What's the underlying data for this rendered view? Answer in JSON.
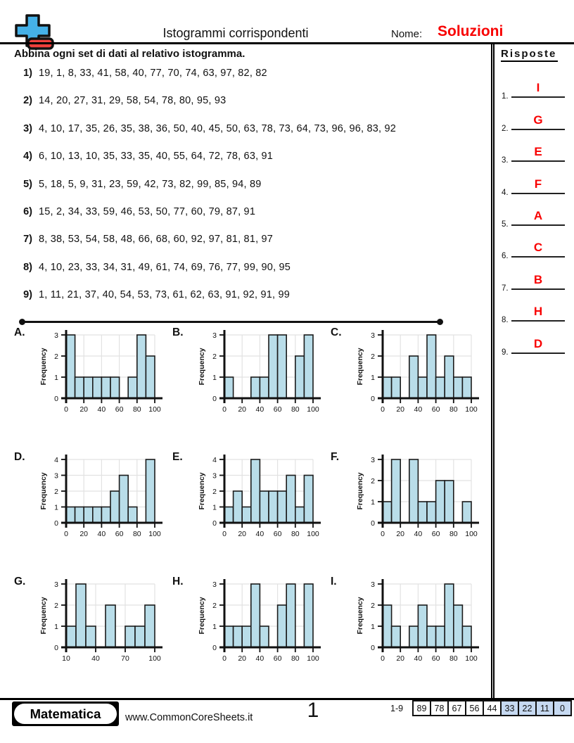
{
  "colors": {
    "red": "#f80000",
    "bar_fill": "#b9dde9",
    "score_highlight": "#c6d9f1",
    "logo_blue": "#45b1e8",
    "logo_red": "#ee3f3b"
  },
  "header": {
    "title": "Istogrammi corrispondenti",
    "name_label": "Nome:",
    "name_value": "Soluzioni"
  },
  "instruction": "Abbina ogni set di dati al relativo istogramma.",
  "datasets": [
    {
      "num": "1)",
      "values": "19, 1, 8, 33, 41, 58, 40, 77, 70, 74, 63, 97, 82, 82"
    },
    {
      "num": "2)",
      "values": "14, 20, 27, 31, 29, 58, 54, 78, 80, 95, 93"
    },
    {
      "num": "3)",
      "values": "4, 10, 17, 35, 26, 35, 38, 36, 50, 40, 45, 50, 63, 78, 73, 64, 73, 96, 96, 83, 92"
    },
    {
      "num": "4)",
      "values": "6, 10, 13, 10, 35, 33, 35, 40, 55, 64, 72, 78, 63, 91"
    },
    {
      "num": "5)",
      "values": "5, 18, 5, 9, 31, 23, 59, 42, 73, 82, 99, 85, 94, 89"
    },
    {
      "num": "6)",
      "values": "15, 2, 34, 33, 59, 46, 53, 50, 77, 60, 79, 87, 91"
    },
    {
      "num": "7)",
      "values": "8, 38, 53, 54, 58, 48, 66, 68, 60, 92, 97, 81, 81, 97"
    },
    {
      "num": "8)",
      "values": "4, 10, 23, 33, 34, 31, 49, 61, 74, 69, 76, 77, 99, 90, 95"
    },
    {
      "num": "9)",
      "values": "1, 11, 21, 37, 40, 54, 53, 73, 61, 62, 63, 91, 92, 91, 99"
    }
  ],
  "answers": {
    "title": "Risposte",
    "items": [
      {
        "num": "1.",
        "letter": "I"
      },
      {
        "num": "2.",
        "letter": "G"
      },
      {
        "num": "3.",
        "letter": "E"
      },
      {
        "num": "4.",
        "letter": "F"
      },
      {
        "num": "5.",
        "letter": "A"
      },
      {
        "num": "6.",
        "letter": "C"
      },
      {
        "num": "7.",
        "letter": "B"
      },
      {
        "num": "8.",
        "letter": "H"
      },
      {
        "num": "9.",
        "letter": "D"
      }
    ]
  },
  "chart_data": [
    {
      "label": "A.",
      "type": "bar",
      "ylabel": "Frequency",
      "ylim": [
        0,
        3
      ],
      "bin_start": 0,
      "bin_width": 10,
      "x_ticks": [
        0,
        20,
        40,
        60,
        80,
        100
      ],
      "values": [
        3,
        1,
        1,
        1,
        1,
        1,
        0,
        1,
        3,
        2
      ]
    },
    {
      "label": "B.",
      "type": "bar",
      "ylabel": "Frequency",
      "ylim": [
        0,
        3
      ],
      "bin_start": 0,
      "bin_width": 10,
      "x_ticks": [
        0,
        20,
        40,
        60,
        80,
        100
      ],
      "values": [
        1,
        0,
        0,
        1,
        1,
        3,
        3,
        0,
        2,
        3
      ]
    },
    {
      "label": "C.",
      "type": "bar",
      "ylabel": "Frequency",
      "ylim": [
        0,
        3
      ],
      "bin_start": 0,
      "bin_width": 10,
      "x_ticks": [
        0,
        20,
        40,
        60,
        80,
        100
      ],
      "values": [
        1,
        1,
        0,
        2,
        1,
        3,
        1,
        2,
        1,
        1
      ]
    },
    {
      "label": "D.",
      "type": "bar",
      "ylabel": "Frequency",
      "ylim": [
        0,
        4
      ],
      "bin_start": 0,
      "bin_width": 10,
      "x_ticks": [
        0,
        20,
        40,
        60,
        80,
        100
      ],
      "values": [
        1,
        1,
        1,
        1,
        1,
        2,
        3,
        1,
        0,
        4
      ]
    },
    {
      "label": "E.",
      "type": "bar",
      "ylabel": "Frequency",
      "ylim": [
        0,
        4
      ],
      "bin_start": 0,
      "bin_width": 10,
      "x_ticks": [
        0,
        20,
        40,
        60,
        80,
        100
      ],
      "values": [
        1,
        2,
        1,
        4,
        2,
        2,
        2,
        3,
        1,
        3
      ]
    },
    {
      "label": "F.",
      "type": "bar",
      "ylabel": "Frequency",
      "ylim": [
        0,
        3
      ],
      "bin_start": 0,
      "bin_width": 10,
      "x_ticks": [
        0,
        20,
        40,
        60,
        80,
        100
      ],
      "values": [
        1,
        3,
        0,
        3,
        1,
        1,
        2,
        2,
        0,
        1
      ]
    },
    {
      "label": "G.",
      "type": "bar",
      "ylabel": "Frequency",
      "ylim": [
        0,
        3
      ],
      "bin_start": 10,
      "bin_width": 10,
      "x_ticks": [
        10,
        40,
        70,
        100
      ],
      "values": [
        1,
        3,
        1,
        0,
        2,
        0,
        1,
        1,
        2
      ]
    },
    {
      "label": "H.",
      "type": "bar",
      "ylabel": "Frequency",
      "ylim": [
        0,
        3
      ],
      "bin_start": 0,
      "bin_width": 10,
      "x_ticks": [
        0,
        20,
        40,
        60,
        80,
        100
      ],
      "values": [
        1,
        1,
        1,
        3,
        1,
        0,
        2,
        3,
        0,
        3
      ]
    },
    {
      "label": "I.",
      "type": "bar",
      "ylabel": "Frequency",
      "ylim": [
        0,
        3
      ],
      "bin_start": 0,
      "bin_width": 10,
      "x_ticks": [
        0,
        20,
        40,
        60,
        80,
        100
      ],
      "values": [
        2,
        1,
        0,
        1,
        2,
        1,
        1,
        3,
        2,
        1
      ]
    }
  ],
  "footer": {
    "brand": "Matematica",
    "site": "www.CommonCoreSheets.it",
    "page": "1",
    "score_label": "1-9",
    "score_cells": [
      {
        "value": "89",
        "highlight": false
      },
      {
        "value": "78",
        "highlight": false
      },
      {
        "value": "67",
        "highlight": false
      },
      {
        "value": "56",
        "highlight": false
      },
      {
        "value": "44",
        "highlight": false
      },
      {
        "value": "33",
        "highlight": true
      },
      {
        "value": "22",
        "highlight": true
      },
      {
        "value": "11",
        "highlight": true
      },
      {
        "value": "0",
        "highlight": true
      }
    ]
  }
}
